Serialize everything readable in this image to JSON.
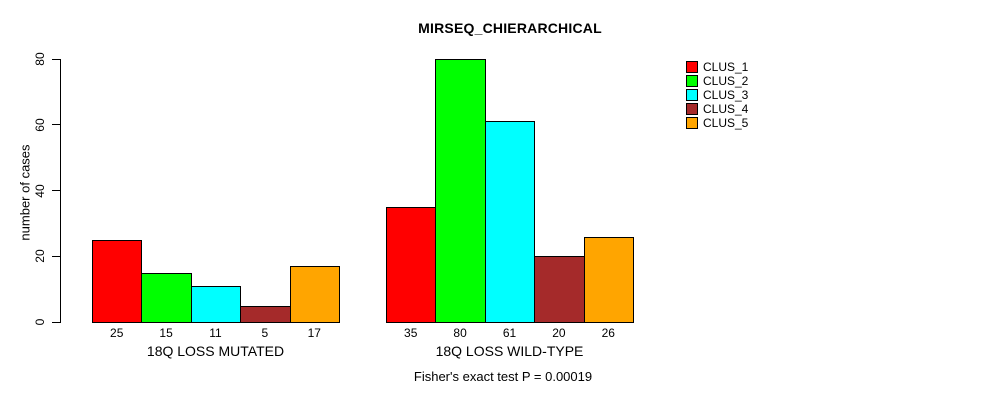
{
  "chart_data": {
    "type": "bar",
    "title": "MIRSEQ_CHIERARCHICAL",
    "ylabel": "number of cases",
    "xlabel": "",
    "categories": [
      "18Q LOSS MUTATED",
      "18Q LOSS WILD-TYPE"
    ],
    "series": [
      {
        "name": "CLUS_1",
        "color": "#FF0000",
        "values": [
          25,
          35
        ]
      },
      {
        "name": "CLUS_2",
        "color": "#00FF00",
        "values": [
          15,
          80
        ]
      },
      {
        "name": "CLUS_3",
        "color": "#00FFFF",
        "values": [
          11,
          61
        ]
      },
      {
        "name": "CLUS_4",
        "color": "#A52A2A",
        "values": [
          5,
          20
        ]
      },
      {
        "name": "CLUS_5",
        "color": "#FFA500",
        "values": [
          17,
          26
        ]
      }
    ],
    "bar_value_labels": [
      [
        "25",
        "15",
        "11",
        "5",
        "17"
      ],
      [
        "35",
        "80",
        "61",
        "20",
        "26"
      ]
    ],
    "yticks": [
      0,
      20,
      40,
      60,
      80
    ],
    "ylim": [
      0,
      80
    ],
    "grid": false,
    "legend_position": "right",
    "legend_labels": [
      "CLUS_1",
      "CLUS_2",
      "CLUS_3",
      "CLUS_4",
      "CLUS_5"
    ],
    "annotation": "Fisher's exact test P = 0.00019",
    "axis_color": "#000000",
    "background_color": "#FFFFFF"
  }
}
